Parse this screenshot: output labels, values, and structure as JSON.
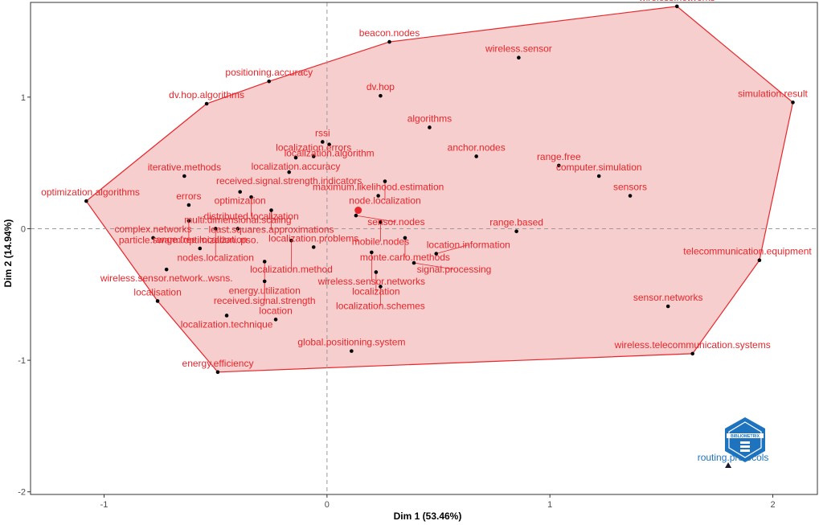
{
  "chart_data": {
    "type": "scatter",
    "xlabel": "Dim 1 (53.46%)",
    "ylabel": "Dim 2 (14.94%)",
    "xlim": [
      -1.33,
      2.2
    ],
    "ylim": [
      -2.02,
      1.72
    ],
    "x_ticks": [
      -1,
      0,
      1,
      2
    ],
    "y_ticks": [
      -2,
      -1,
      0,
      1
    ],
    "grid": false,
    "reference_lines": "dashed at x=0 and y=0",
    "colors": {
      "cluster": "#e8262b",
      "hull_fill": "#f4c5c6",
      "points": "#000000",
      "outlier": "#1e73be"
    },
    "centroid": {
      "x": 0.14,
      "y": 0.14
    },
    "cluster_points": [
      {
        "label": "wireless.networks",
        "x": 1.57,
        "y": 1.69
      },
      {
        "label": "beacon.nodes",
        "x": 0.28,
        "y": 1.42
      },
      {
        "label": "wireless.sensor",
        "x": 0.86,
        "y": 1.3
      },
      {
        "label": "simulation.result",
        "x": 2.09,
        "y": 0.96
      },
      {
        "label": "dv.hop.algorithms",
        "x": -0.54,
        "y": 0.95
      },
      {
        "label": "positioning.accuracy",
        "x": -0.26,
        "y": 1.12
      },
      {
        "label": "dv.hop",
        "x": 0.24,
        "y": 1.01
      },
      {
        "label": "algorithms",
        "x": 0.46,
        "y": 0.77
      },
      {
        "label": "rssi",
        "x": -0.02,
        "y": 0.66
      },
      {
        "label": "localization.algorithm",
        "x": 0.01,
        "y": 0.64
      },
      {
        "label": "iterative.methods",
        "x": -0.64,
        "y": 0.4
      },
      {
        "label": "localization.accuracy",
        "x": -0.14,
        "y": 0.54
      },
      {
        "label": "received.signal.strength.indicators",
        "x": -0.17,
        "y": 0.43
      },
      {
        "label": "localization.errors",
        "x": -0.06,
        "y": 0.55
      },
      {
        "label": "anchor.nodes",
        "x": 0.67,
        "y": 0.55
      },
      {
        "label": "range.free",
        "x": 1.04,
        "y": 0.48
      },
      {
        "label": "node.localization",
        "x": 0.26,
        "y": 0.36
      },
      {
        "label": "optimization.algorithms",
        "x": -1.08,
        "y": 0.21
      },
      {
        "label": "optimization",
        "x": -0.39,
        "y": 0.28
      },
      {
        "label": "distributed.localization",
        "x": -0.34,
        "y": 0.24
      },
      {
        "label": "maximum.likelihood.estimation",
        "x": 0.23,
        "y": 0.25
      },
      {
        "label": "computer.simulation",
        "x": 1.22,
        "y": 0.4
      },
      {
        "label": "sensors",
        "x": 1.36,
        "y": 0.25
      },
      {
        "label": "errors",
        "x": -0.62,
        "y": 0.18
      },
      {
        "label": "least.squares.approximations",
        "x": -0.25,
        "y": 0.14
      },
      {
        "label": "particle.swarm.optimization..pso.",
        "x": -0.62,
        "y": 0.06
      },
      {
        "label": "sensor.nodes",
        "x": 0.13,
        "y": 0.1
      },
      {
        "label": "mobile.nodes",
        "x": 0.24,
        "y": 0.05
      },
      {
        "label": "range.based",
        "x": 0.85,
        "y": -0.02
      },
      {
        "label": "nodes.localization",
        "x": -0.5,
        "y": 0.0
      },
      {
        "label": "complex.networks",
        "x": -0.78,
        "y": -0.07
      },
      {
        "label": "multi.dimensional.scaling",
        "x": -0.4,
        "y": 0.0
      },
      {
        "label": "localization.method",
        "x": -0.16,
        "y": -0.09
      },
      {
        "label": "monte.carlo.methods",
        "x": 0.35,
        "y": -0.07
      },
      {
        "label": "range.free.localization",
        "x": -0.57,
        "y": -0.15
      },
      {
        "label": "localization.problems",
        "x": -0.06,
        "y": -0.14
      },
      {
        "label": "wireless.sensor.networks",
        "x": 0.2,
        "y": -0.18
      },
      {
        "label": "location.information",
        "x": 0.49,
        "y": -0.19
      },
      {
        "label": "telecommunication.equipment",
        "x": 1.94,
        "y": -0.24
      },
      {
        "label": "wireless.sensor.network..wsns.",
        "x": -0.72,
        "y": -0.31
      },
      {
        "label": "energy.utilization",
        "x": -0.28,
        "y": -0.25
      },
      {
        "label": "signal.processing",
        "x": 0.39,
        "y": -0.26
      },
      {
        "label": "localization",
        "x": 0.22,
        "y": -0.33
      },
      {
        "label": "received.signal.strength",
        "x": -0.28,
        "y": -0.4
      },
      {
        "label": "localization.schemes",
        "x": 0.24,
        "y": -0.44
      },
      {
        "label": "localisation",
        "x": -0.76,
        "y": -0.55
      },
      {
        "label": "sensor.networks",
        "x": 1.53,
        "y": -0.59
      },
      {
        "label": "localization.technique",
        "x": -0.45,
        "y": -0.66
      },
      {
        "label": "location",
        "x": -0.23,
        "y": -0.69
      },
      {
        "label": "wireless.telecommunication.systems",
        "x": 1.64,
        "y": -0.95
      },
      {
        "label": "global.positioning.system",
        "x": 0.11,
        "y": -0.93
      },
      {
        "label": "energy.efficiency",
        "x": -0.49,
        "y": -1.09
      }
    ],
    "outlier_points": [
      {
        "label": "routing.protocols",
        "x": 1.8,
        "y": -1.8
      }
    ],
    "logo_text": "BIBLIOMETRIX"
  }
}
